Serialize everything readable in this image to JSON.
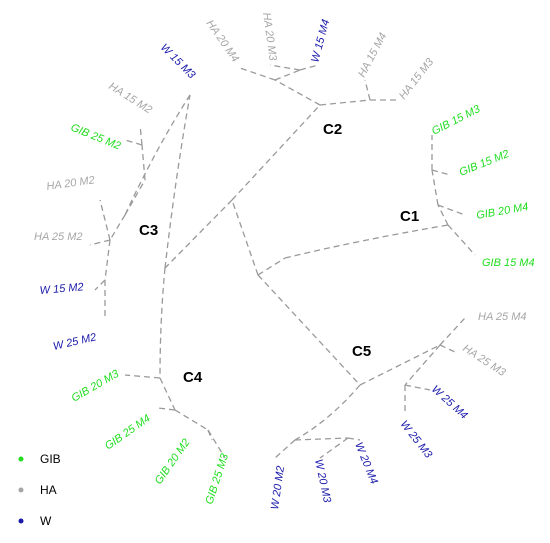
{
  "colors": {
    "GIB": "#22dd22",
    "HA": "#a6a6a6",
    "W": "#1a1aaa",
    "branch": "#9a9a9a"
  },
  "clusters": {
    "c1": "C1",
    "c2": "C2",
    "c3": "C3",
    "c4": "C4",
    "c5": "C5"
  },
  "leaves": {
    "l01": "HA 20 M4",
    "l02": "HA 20 M3",
    "l03": "W 15 M4",
    "l04": "HA 15 M4",
    "l05": "HA 15 M3",
    "l06": "GIB 15 M3",
    "l07": "GIB 15 M2",
    "l08": "GIB 20 M4",
    "l09": "GIB 15 M4",
    "l10": "HA 25 M4",
    "l11": "HA 25 M3",
    "l12": "W 25 M4",
    "l13": "W 25 M3",
    "l14": "W 20 M4",
    "l15": "W 20 M3",
    "l16": "W 20 M2",
    "l17": "GIB 25 M3",
    "l18": "GIB 20 M2",
    "l19": "GIB 25 M4",
    "l20": "GIB 20 M3",
    "l21": "W 25 M2",
    "l22": "W 15 M2",
    "l23": "HA 25 M2",
    "l24": "HA 20 M2",
    "l25": "GIB 25 M2",
    "l26": "HA 15 M2",
    "l27": "W 15 M3"
  },
  "legend": [
    {
      "label": "GIB",
      "color": "#22dd22"
    },
    {
      "label": "HA",
      "color": "#a6a6a6"
    },
    {
      "label": "W",
      "color": "#1a1aaa"
    }
  ]
}
